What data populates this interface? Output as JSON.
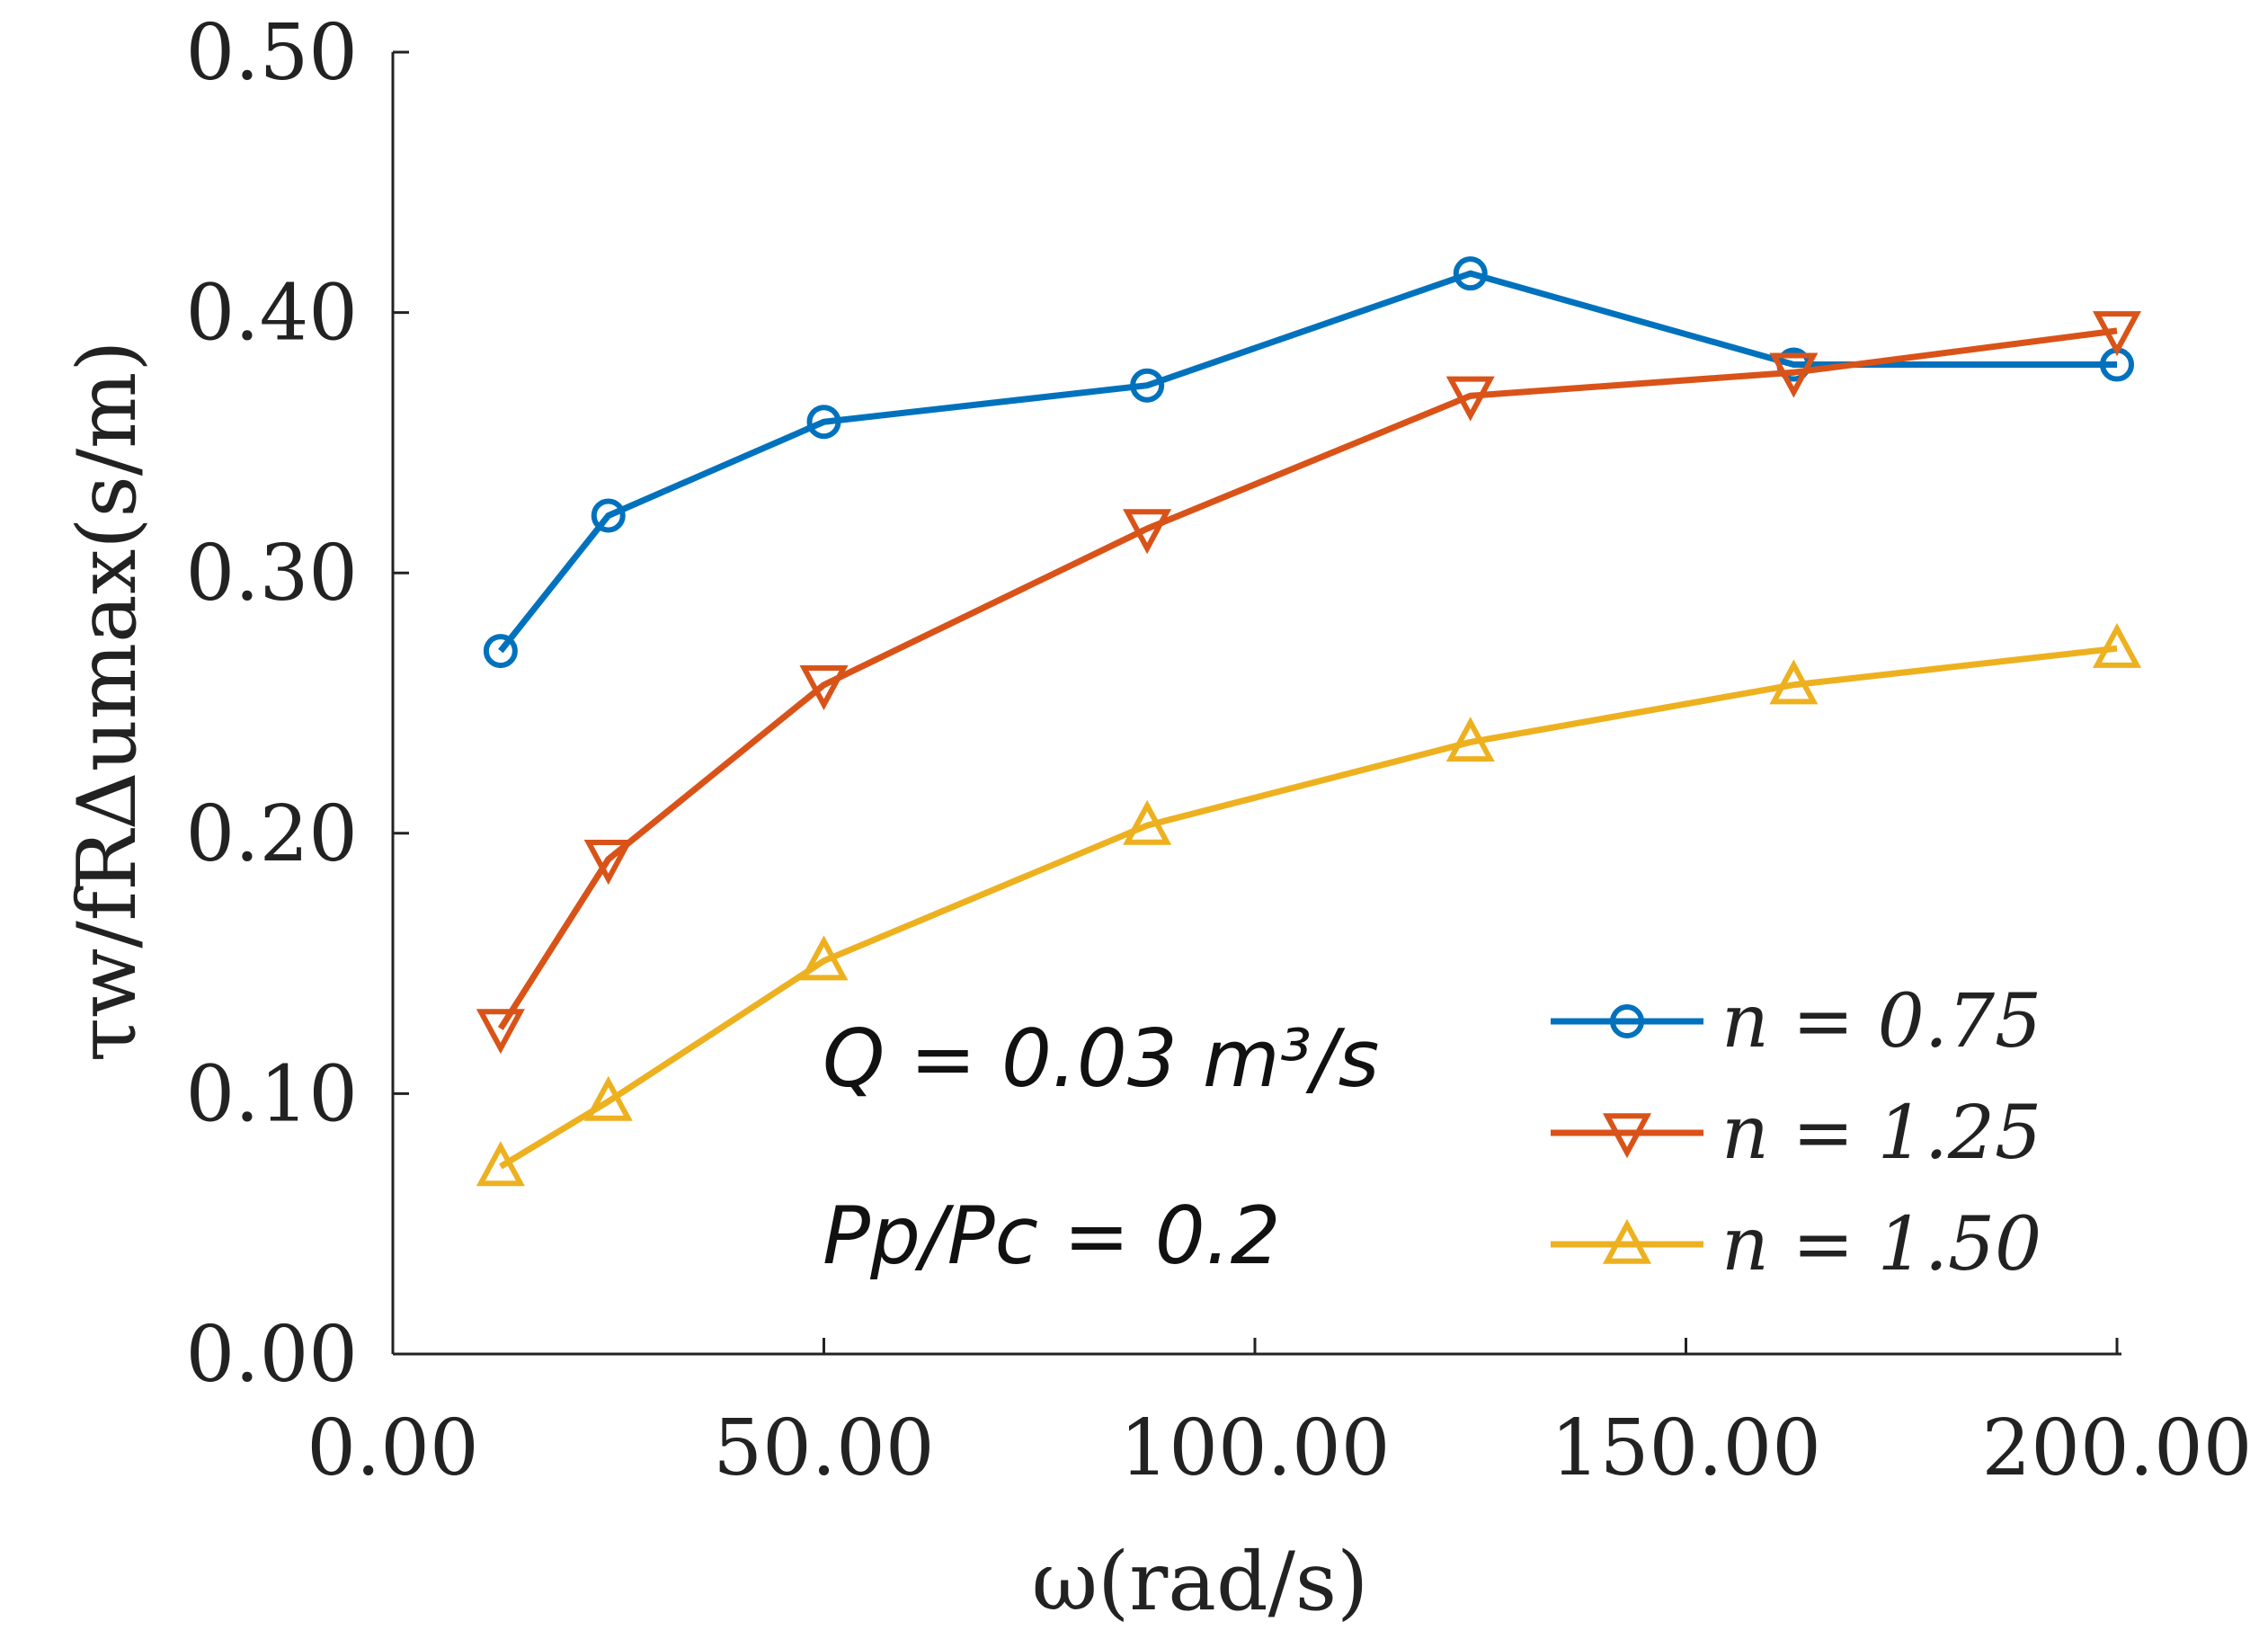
{
  "chart_data": {
    "type": "line",
    "title": "",
    "xlabel": "ω(rad/s)",
    "ylabel": "τw/fRΔumax(s/m)",
    "xlim": [
      0,
      200
    ],
    "ylim": [
      0,
      0.5
    ],
    "xticks": [
      0,
      50,
      100,
      150,
      200
    ],
    "yticks": [
      0,
      0.1,
      0.2,
      0.3,
      0.4,
      0.5
    ],
    "xtick_labels": [
      "0.00",
      "50.00",
      "100.00",
      "150.00",
      "200.00"
    ],
    "ytick_labels": [
      "0.00",
      "0.10",
      "0.20",
      "0.30",
      "0.40",
      "0.50"
    ],
    "grid": false,
    "legend_position": "bottom-right",
    "x": [
      12.5,
      25,
      50,
      87.5,
      125,
      162.5,
      200
    ],
    "series": [
      {
        "name": "n = 0.75",
        "marker": "circle",
        "color": "#0072BD",
        "values": [
          0.27,
          0.322,
          0.358,
          0.372,
          0.415,
          0.38,
          0.38
        ]
      },
      {
        "name": "n = 1.25",
        "marker": "triangle-down",
        "color": "#D95319",
        "values": [
          0.125,
          0.19,
          0.257,
          0.317,
          0.368,
          0.377,
          0.393
        ]
      },
      {
        "name": "n = 1.50",
        "marker": "triangle-up",
        "color": "#EDB120",
        "values": [
          0.072,
          0.097,
          0.151,
          0.203,
          0.235,
          0.257,
          0.271
        ]
      }
    ],
    "annotations": [
      "Q = 0.03 m³/s",
      "Pp/Pc = 0.2"
    ]
  }
}
